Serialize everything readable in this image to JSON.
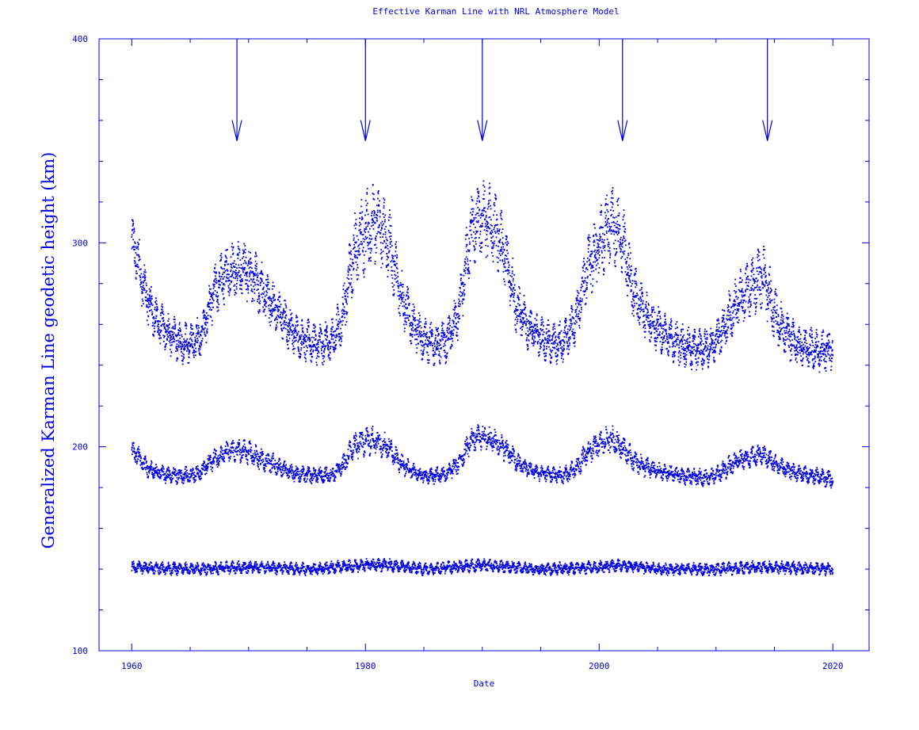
{
  "chart_data": {
    "type": "scatter",
    "title": "Effective Karman Line with NRL Atmosphere Model",
    "xlabel": "Date",
    "ylabel": "Generalized Karman Line geodetic height (km)",
    "xlim": [
      1957.2,
      2023.1
    ],
    "ylim": [
      100,
      400
    ],
    "x_ticks": [
      1960,
      1980,
      2000,
      2020
    ],
    "x_tick_labels": [
      "1960",
      "1980",
      "2000",
      "2020"
    ],
    "y_ticks": [
      100,
      200,
      300,
      400
    ],
    "y_tick_labels": [
      "100",
      "200",
      "300",
      "400"
    ],
    "color": "#0000e0",
    "grid": false,
    "legend": "none",
    "arrows": {
      "x": [
        1969,
        1980,
        1990,
        2002,
        2014.4
      ],
      "y_from": 400,
      "y_to": 350
    },
    "series": [
      {
        "x": [
          1960.0,
          1960.5,
          1961.0,
          1962.0,
          1963.0,
          1964.0,
          1965.0,
          1966.0,
          1967.0,
          1968.0,
          1969.0,
          1970.0,
          1971.0,
          1972.0,
          1973.0,
          1974.0,
          1975.0,
          1976.0,
          1977.0,
          1978.0,
          1979.0,
          1980.0,
          1981.0,
          1982.0,
          1983.0,
          1984.0,
          1985.0,
          1986.0,
          1987.0,
          1988.0,
          1989.0,
          1990.0,
          1991.0,
          1992.0,
          1993.0,
          1994.0,
          1995.0,
          1996.0,
          1997.0,
          1998.0,
          1999.0,
          2000.0,
          2001.0,
          2002.0,
          2003.0,
          2004.0,
          2005.0,
          2006.0,
          2007.0,
          2008.0,
          2009.0,
          2010.0,
          2011.0,
          2012.0,
          2013.0,
          2014.0,
          2015.0,
          2016.0,
          2017.0,
          2018.0,
          2019.0,
          2020.0
        ],
        "y": [
          300,
          293,
          278,
          263,
          256,
          252,
          250,
          255,
          275,
          285,
          288,
          286,
          278,
          270,
          262,
          255,
          252,
          250,
          251,
          262,
          295,
          305,
          310,
          300,
          275,
          260,
          252,
          250,
          252,
          265,
          305,
          312,
          308,
          292,
          268,
          258,
          254,
          250,
          252,
          262,
          288,
          298,
          310,
          300,
          275,
          265,
          258,
          253,
          250,
          248,
          248,
          252,
          262,
          272,
          278,
          285,
          265,
          255,
          250,
          248,
          247,
          248
        ],
        "spread": [
          14,
          14,
          12,
          11,
          10,
          10,
          10,
          10,
          12,
          14,
          14,
          14,
          14,
          12,
          11,
          10,
          10,
          10,
          10,
          12,
          18,
          20,
          20,
          18,
          14,
          11,
          10,
          10,
          10,
          12,
          18,
          18,
          18,
          16,
          13,
          11,
          10,
          10,
          10,
          12,
          16,
          18,
          18,
          18,
          14,
          12,
          11,
          10,
          10,
          10,
          10,
          10,
          12,
          14,
          14,
          16,
          13,
          11,
          10,
          10,
          10,
          10
        ]
      },
      {
        "x": [
          1960.0,
          1960.5,
          1961.0,
          1962.0,
          1963.0,
          1964.0,
          1965.0,
          1966.0,
          1967.0,
          1968.0,
          1969.0,
          1970.0,
          1971.0,
          1972.0,
          1973.0,
          1974.0,
          1975.0,
          1976.0,
          1977.0,
          1978.0,
          1979.0,
          1980.0,
          1981.0,
          1982.0,
          1983.0,
          1984.0,
          1985.0,
          1986.0,
          1987.0,
          1988.0,
          1989.0,
          1990.0,
          1991.0,
          1992.0,
          1993.0,
          1994.0,
          1995.0,
          1996.0,
          1997.0,
          1998.0,
          1999.0,
          2000.0,
          2001.0,
          2002.0,
          2003.0,
          2004.0,
          2005.0,
          2006.0,
          2007.0,
          2008.0,
          2009.0,
          2010.0,
          2011.0,
          2012.0,
          2013.0,
          2014.0,
          2015.0,
          2016.0,
          2017.0,
          2018.0,
          2019.0,
          2020.0
        ],
        "y": [
          198,
          196,
          191,
          188,
          186,
          186,
          186,
          188,
          194,
          197,
          198,
          197,
          194,
          192,
          189,
          187,
          186,
          186,
          186,
          190,
          200,
          203,
          203,
          200,
          192,
          188,
          186,
          186,
          187,
          192,
          203,
          205,
          203,
          199,
          192,
          189,
          187,
          186,
          186,
          189,
          197,
          201,
          204,
          200,
          193,
          190,
          188,
          187,
          186,
          185,
          185,
          186,
          190,
          194,
          195,
          196,
          192,
          189,
          187,
          186,
          185,
          184
        ],
        "spread": [
          5,
          5,
          5,
          4,
          4,
          4,
          4,
          4,
          5,
          5,
          6,
          6,
          5,
          5,
          4,
          4,
          4,
          4,
          4,
          5,
          7,
          7,
          7,
          6,
          5,
          4,
          4,
          4,
          4,
          5,
          6,
          6,
          6,
          6,
          5,
          4,
          4,
          4,
          4,
          5,
          6,
          6,
          7,
          6,
          5,
          5,
          4,
          4,
          4,
          4,
          4,
          4,
          5,
          5,
          5,
          5,
          5,
          4,
          4,
          4,
          4,
          4
        ]
      },
      {
        "x": [
          1960.0,
          1965.0,
          1970.0,
          1975.0,
          1980.0,
          1982.0,
          1985.0,
          1990.0,
          1995.0,
          2000.0,
          2002.0,
          2005.0,
          2010.0,
          2014.0,
          2020.0
        ],
        "y": [
          141,
          140,
          141,
          140,
          142,
          142,
          140,
          142,
          140,
          141,
          142,
          140,
          140,
          141,
          140
        ],
        "spread": [
          3,
          3,
          3,
          3,
          3,
          3,
          3,
          3,
          3,
          3,
          3,
          3,
          3,
          3,
          3
        ]
      }
    ]
  }
}
